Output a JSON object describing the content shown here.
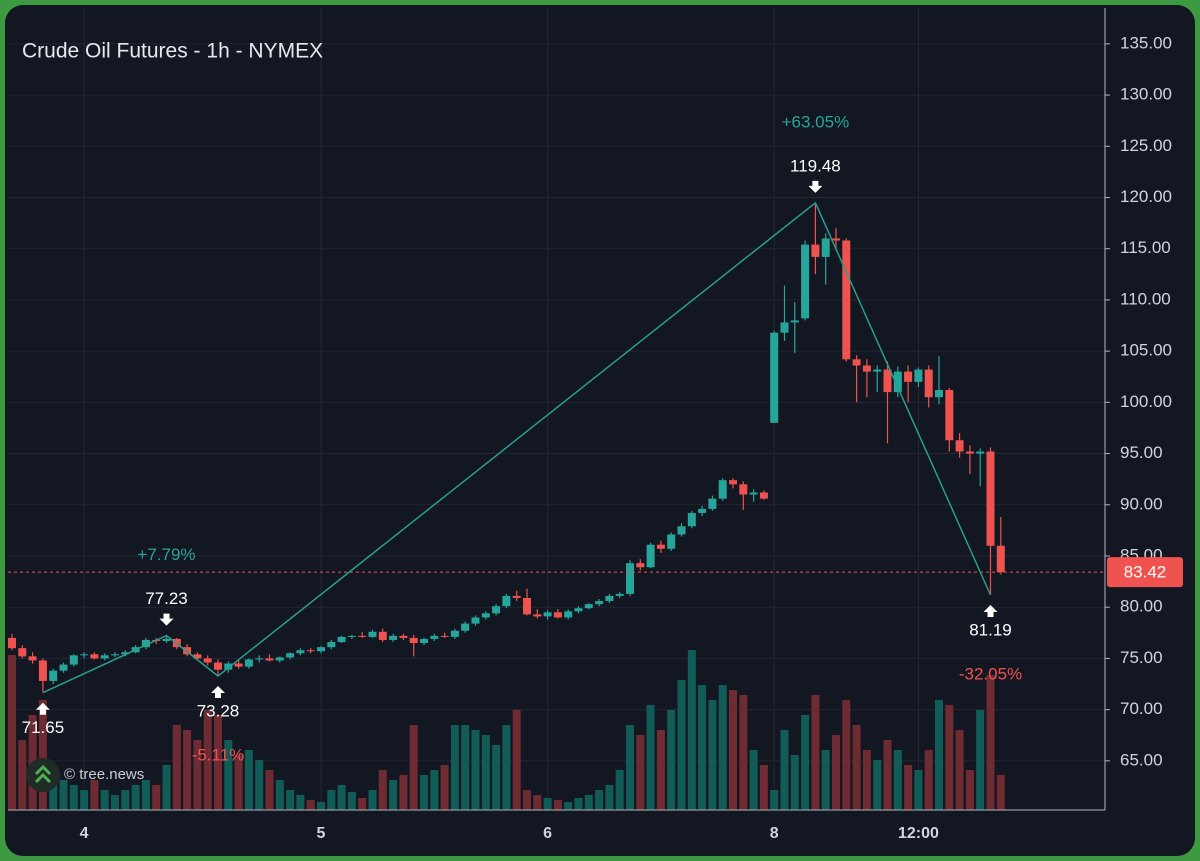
{
  "chart_data": {
    "type": "candlestick",
    "title": "Crude Oil Futures - 1h - NYMEX",
    "categories": [
      null,
      null,
      null,
      null,
      null,
      null,
      null,
      "4",
      null,
      null,
      null,
      null,
      null,
      null,
      null,
      null,
      null,
      null,
      null,
      null,
      null,
      null,
      null,
      null,
      null,
      null,
      null,
      null,
      null,
      null,
      "5",
      null,
      null,
      null,
      null,
      null,
      null,
      null,
      null,
      null,
      null,
      null,
      null,
      null,
      null,
      null,
      null,
      null,
      null,
      null,
      null,
      null,
      "6",
      null,
      null,
      null,
      null,
      null,
      null,
      null,
      null,
      null,
      null,
      null,
      null,
      null,
      null,
      null,
      null,
      null,
      null,
      null,
      null,
      null,
      "8",
      null,
      null,
      null,
      null,
      null,
      null,
      null,
      null,
      null,
      null,
      null,
      null,
      null,
      "12:00",
      null,
      null,
      null,
      null,
      null,
      null,
      null,
      null
    ],
    "open": [
      77.0,
      76.0,
      75.2,
      74.8,
      72.8,
      73.8,
      74.4,
      75.3,
      75.4,
      75.0,
      75.3,
      75.4,
      75.6,
      76.1,
      76.8,
      76.7,
      76.9,
      76.1,
      75.4,
      75.0,
      74.6,
      73.9,
      74.5,
      74.2,
      74.9,
      75.0,
      74.8,
      75.1,
      75.5,
      75.8,
      75.7,
      76.1,
      76.6,
      77.1,
      77.2,
      77.1,
      77.6,
      76.8,
      77.2,
      77.0,
      76.5,
      76.9,
      77.2,
      77.1,
      77.7,
      78.4,
      79.0,
      79.4,
      80.1,
      81.1,
      80.9,
      79.3,
      79.1,
      79.5,
      79.0,
      79.6,
      79.9,
      80.3,
      80.6,
      81.1,
      81.3,
      84.3,
      83.9,
      86.1,
      85.7,
      87.1,
      87.9,
      89.2,
      89.6,
      90.6,
      92.4,
      92.0,
      91.0,
      91.2,
      98.0,
      106.8,
      107.8,
      108.2,
      115.4,
      114.2,
      116.0,
      115.8,
      104.2,
      103.6,
      103.0,
      103.2,
      101.0,
      103.0,
      102.0,
      103.2,
      100.5,
      101.2,
      96.3,
      95.2,
      95.0,
      95.2,
      86.0
    ],
    "high": [
      77.4,
      76.3,
      75.6,
      75.0,
      74.0,
      74.6,
      75.4,
      75.6,
      75.6,
      75.5,
      75.6,
      75.8,
      76.3,
      77.0,
      77.0,
      77.23,
      77.0,
      76.4,
      75.6,
      75.3,
      74.9,
      74.7,
      74.8,
      75.0,
      75.3,
      75.4,
      75.2,
      75.6,
      76.0,
      76.0,
      76.2,
      76.8,
      77.2,
      77.3,
      77.6,
      77.8,
      77.9,
      77.4,
      77.4,
      77.3,
      77.0,
      77.4,
      77.5,
      77.9,
      78.6,
      79.2,
      79.6,
      80.3,
      81.3,
      81.6,
      81.8,
      79.8,
      79.7,
      79.8,
      79.8,
      80.1,
      80.4,
      80.8,
      81.3,
      81.5,
      84.6,
      84.7,
      86.3,
      86.5,
      87.3,
      88.2,
      89.4,
      89.9,
      90.9,
      92.6,
      92.6,
      92.3,
      91.5,
      91.4,
      107.0,
      111.4,
      109.8,
      115.8,
      119.48,
      116.5,
      117.0,
      116.0,
      104.6,
      104.2,
      103.6,
      104.0,
      103.5,
      103.6,
      103.4,
      103.6,
      104.5,
      101.4,
      97.0,
      95.8,
      95.5,
      95.6,
      88.8
    ],
    "low": [
      75.8,
      75.0,
      74.5,
      71.65,
      72.5,
      73.6,
      74.2,
      75.0,
      74.9,
      74.8,
      75.1,
      75.2,
      75.5,
      75.9,
      76.4,
      76.5,
      75.9,
      75.2,
      74.8,
      74.3,
      73.28,
      73.6,
      74.0,
      74.0,
      74.6,
      74.7,
      74.6,
      74.9,
      75.3,
      75.5,
      75.5,
      75.9,
      76.5,
      76.9,
      77.0,
      77.0,
      76.6,
      76.6,
      76.8,
      75.2,
      76.3,
      76.7,
      77.0,
      76.9,
      77.5,
      78.2,
      78.8,
      79.2,
      79.9,
      80.6,
      79.2,
      78.9,
      78.8,
      78.9,
      78.8,
      79.4,
      79.8,
      80.1,
      80.4,
      80.9,
      81.1,
      83.6,
      83.8,
      85.3,
      85.5,
      86.9,
      87.7,
      88.9,
      89.4,
      90.4,
      91.6,
      89.5,
      90.3,
      90.5,
      98.0,
      106.0,
      104.8,
      108.0,
      112.5,
      111.5,
      114.8,
      104.0,
      100.0,
      100.5,
      101.0,
      96.0,
      100.5,
      100.0,
      101.5,
      99.5,
      99.8,
      95.2,
      94.6,
      93.0,
      91.8,
      81.19,
      83.2
    ],
    "close": [
      76.0,
      75.2,
      74.8,
      72.8,
      73.8,
      74.4,
      75.3,
      75.4,
      75.0,
      75.3,
      75.4,
      75.6,
      76.1,
      76.8,
      76.7,
      76.9,
      76.1,
      75.4,
      75.0,
      74.6,
      73.9,
      74.5,
      74.2,
      74.9,
      75.0,
      74.8,
      75.1,
      75.5,
      75.8,
      75.7,
      76.1,
      76.6,
      77.1,
      77.2,
      77.1,
      77.6,
      76.8,
      77.2,
      77.0,
      76.5,
      76.9,
      77.2,
      77.1,
      77.7,
      78.4,
      79.0,
      79.4,
      80.1,
      81.1,
      80.9,
      79.3,
      79.1,
      79.5,
      79.0,
      79.6,
      79.9,
      80.3,
      80.6,
      81.1,
      81.3,
      84.3,
      83.9,
      86.1,
      85.7,
      87.1,
      87.9,
      89.2,
      89.6,
      90.6,
      92.4,
      92.0,
      91.0,
      91.2,
      90.6,
      106.8,
      107.8,
      108.0,
      115.4,
      114.2,
      116.0,
      115.8,
      104.2,
      103.6,
      103.0,
      103.2,
      101.0,
      103.0,
      102.0,
      103.2,
      100.5,
      101.2,
      96.3,
      95.2,
      95.0,
      95.2,
      86.0,
      83.42
    ],
    "volume": [
      155,
      70,
      95,
      110,
      40,
      30,
      25,
      20,
      30,
      20,
      15,
      20,
      25,
      30,
      25,
      45,
      85,
      80,
      70,
      100,
      95,
      70,
      55,
      60,
      50,
      40,
      30,
      20,
      15,
      10,
      8,
      20,
      25,
      18,
      12,
      20,
      40,
      30,
      35,
      85,
      35,
      40,
      45,
      85,
      85,
      80,
      75,
      65,
      85,
      100,
      20,
      15,
      12,
      10,
      8,
      12,
      15,
      20,
      25,
      40,
      85,
      75,
      105,
      80,
      100,
      130,
      160,
      125,
      110,
      125,
      120,
      115,
      60,
      45,
      20,
      80,
      55,
      95,
      115,
      60,
      75,
      110,
      85,
      60,
      50,
      70,
      60,
      45,
      40,
      60,
      110,
      105,
      80,
      40,
      100,
      135,
      35
    ],
    "up_color": "#26a69a",
    "down_color": "#ef5350",
    "volume_up_color": "#115c57",
    "volume_down_color": "#6e2b32",
    "zigzag_color": "#2a9d8f",
    "ylim": [
      60.2,
      138.5
    ],
    "yticks": [
      {
        "value": 65,
        "label": "65.00"
      },
      {
        "value": 70,
        "label": "70.00"
      },
      {
        "value": 75,
        "label": "75.00"
      },
      {
        "value": 80,
        "label": "80.00"
      },
      {
        "value": 85,
        "label": "85.00"
      },
      {
        "value": 90,
        "label": "90.00"
      },
      {
        "value": 95,
        "label": "95.00"
      },
      {
        "value": 100,
        "label": "100.00"
      },
      {
        "value": 105,
        "label": "105.00"
      },
      {
        "value": 110,
        "label": "110.00"
      },
      {
        "value": 115,
        "label": "115.00"
      },
      {
        "value": 120,
        "label": "120.00"
      },
      {
        "value": 125,
        "label": "125.00"
      },
      {
        "value": 130,
        "label": "130.00"
      },
      {
        "value": 135,
        "label": "135.00"
      }
    ],
    "grid": true,
    "pivots": [
      {
        "value": 71.65
      },
      {
        "value": 77.23,
        "change": "+7.79%"
      },
      {
        "value": 73.28,
        "change": "-5.11%"
      },
      {
        "value": 119.48,
        "change": "+63.05%"
      },
      {
        "value": 81.19,
        "change": "-32.05%"
      }
    ],
    "last_price": 83.42,
    "watermark": "© tree.news"
  }
}
